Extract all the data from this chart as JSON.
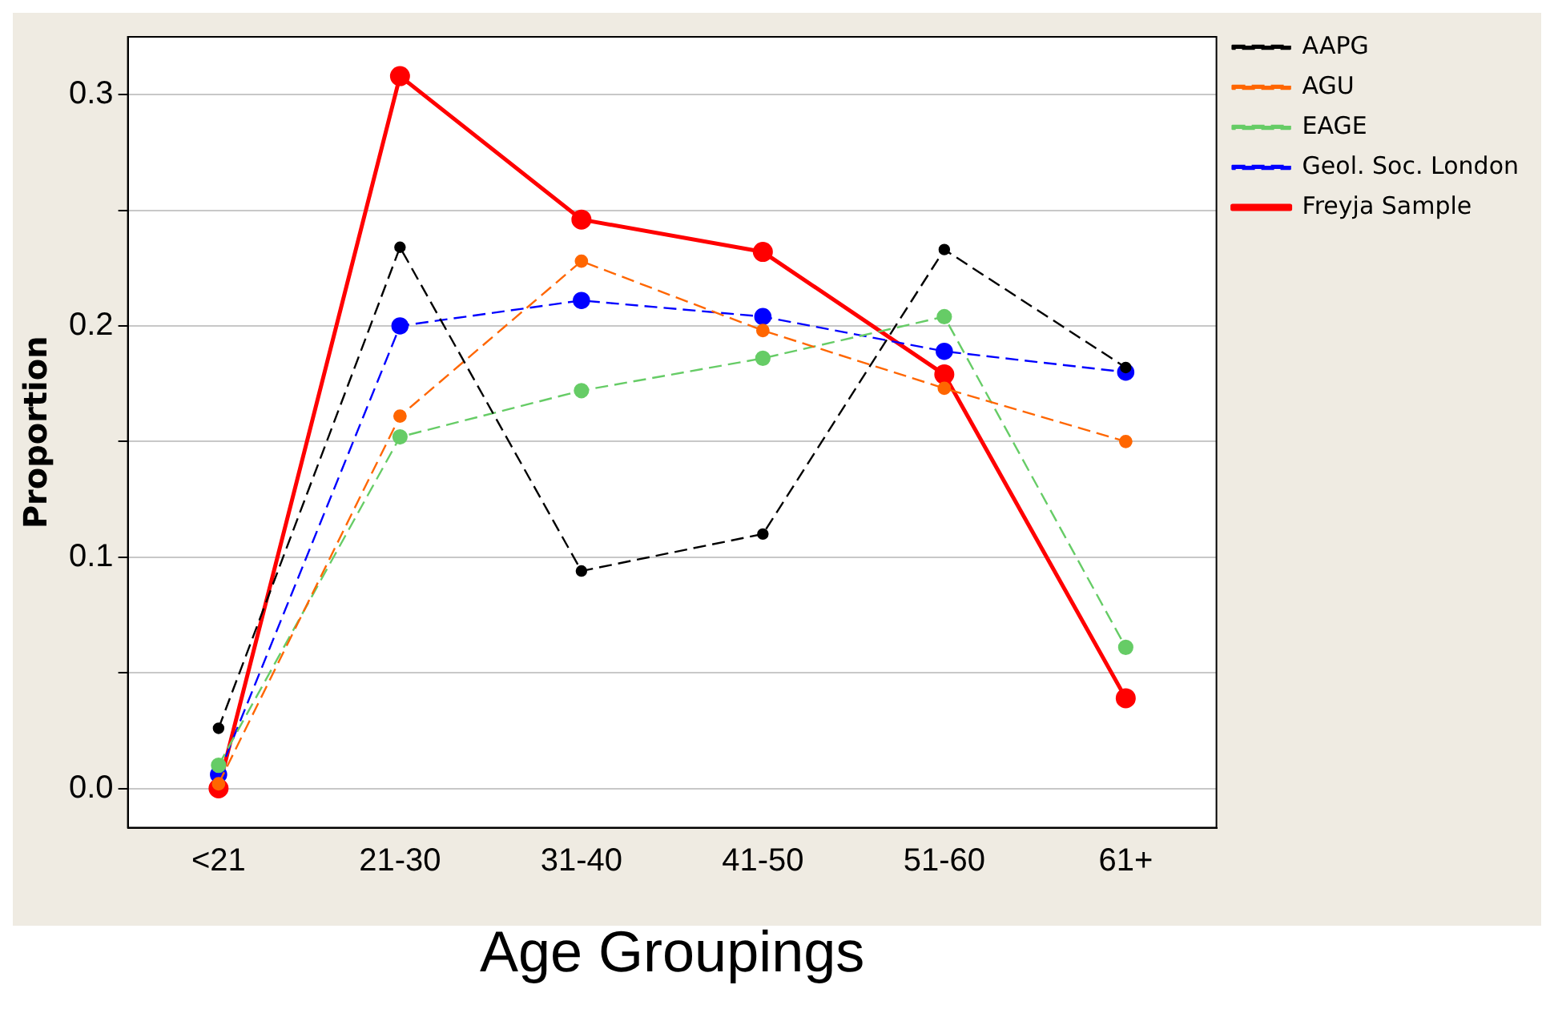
{
  "chart_data": {
    "type": "line",
    "xlabel": "Age Groupings",
    "ylabel": "Proportion",
    "categories": [
      "<21",
      "21-30",
      "31-40",
      "41-50",
      "51-60",
      "61+"
    ],
    "series": [
      {
        "name": "AAPG",
        "color": "#000000",
        "line_style": "dashed",
        "values": [
          0.026,
          0.234,
          0.094,
          0.11,
          0.233,
          0.182
        ]
      },
      {
        "name": "AGU",
        "color": "#ff6600",
        "line_style": "dashed",
        "values": [
          0.002,
          0.161,
          0.228,
          0.198,
          0.173,
          0.15
        ]
      },
      {
        "name": "EAGE",
        "color": "#66cc66",
        "line_style": "dashed",
        "values": [
          0.01,
          0.152,
          0.172,
          0.186,
          0.204,
          0.061
        ]
      },
      {
        "name": "Geol. Soc. London",
        "color": "#0000ff",
        "line_style": "dashed",
        "values": [
          0.006,
          0.2,
          0.211,
          0.204,
          0.189,
          0.18
        ]
      },
      {
        "name": "Freyja Sample",
        "color": "#ff0000",
        "line_style": "solid",
        "values": [
          0.0,
          0.308,
          0.246,
          0.232,
          0.179,
          0.039
        ]
      }
    ],
    "ylim": [
      -0.017,
      0.325
    ],
    "yticks": [
      {
        "value": 0.0,
        "label": "0.0"
      },
      {
        "value": 0.05,
        "label": null
      },
      0.1,
      {
        "value": 0.15,
        "label": null
      },
      0.2,
      {
        "value": 0.25,
        "label": null
      },
      0.3
    ],
    "grid": "y",
    "legend": "top right",
    "marker": "circle"
  }
}
